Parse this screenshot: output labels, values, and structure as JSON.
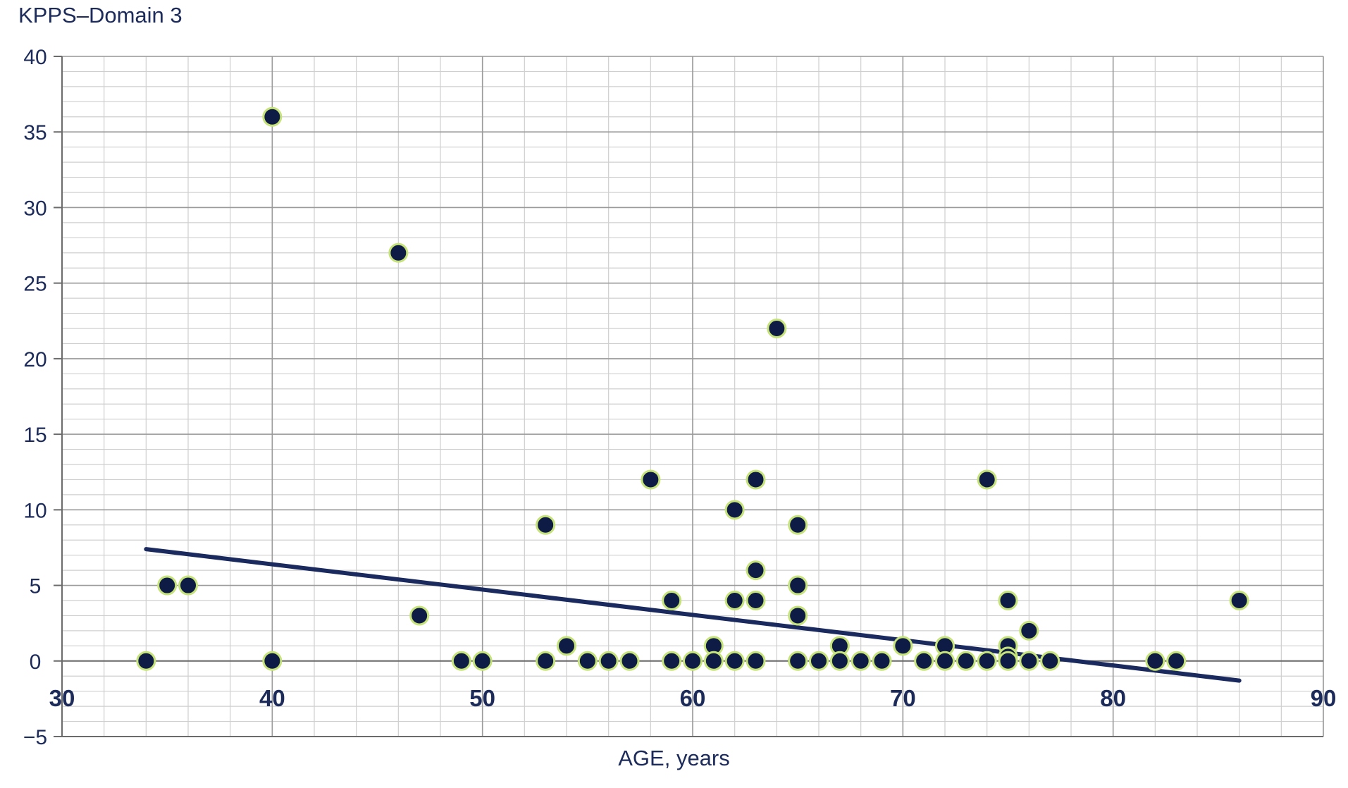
{
  "chart_data": {
    "type": "scatter",
    "title": "",
    "ylabel": "KPPS–Domain 3",
    "xlabel": "AGE, years",
    "xlim": [
      30,
      90
    ],
    "ylim": [
      -5,
      40
    ],
    "x_ticks": [
      30,
      40,
      50,
      60,
      70,
      80,
      90
    ],
    "y_ticks": [
      -5,
      0,
      5,
      10,
      15,
      20,
      25,
      30,
      35,
      40
    ],
    "x_tick_labels": [
      "30",
      "40",
      "50",
      "60",
      "70",
      "80",
      "90"
    ],
    "y_tick_labels": [
      "−5",
      "0",
      "5",
      "10",
      "15",
      "20",
      "25",
      "30",
      "35",
      "40"
    ],
    "grid": true,
    "legend": "none",
    "marker_color": "#0d1b45",
    "marker_edge_color": "#c6e37a",
    "line_color": "#1a2a5e",
    "points": [
      {
        "x": 34,
        "y": 0
      },
      {
        "x": 35,
        "y": 5
      },
      {
        "x": 36,
        "y": 5
      },
      {
        "x": 40,
        "y": 36
      },
      {
        "x": 40,
        "y": 0
      },
      {
        "x": 46,
        "y": 27
      },
      {
        "x": 47,
        "y": 3
      },
      {
        "x": 49,
        "y": 0
      },
      {
        "x": 50,
        "y": 0
      },
      {
        "x": 53,
        "y": 9
      },
      {
        "x": 53,
        "y": 0
      },
      {
        "x": 54,
        "y": 1
      },
      {
        "x": 55,
        "y": 0
      },
      {
        "x": 56,
        "y": 0
      },
      {
        "x": 57,
        "y": 0
      },
      {
        "x": 58,
        "y": 12
      },
      {
        "x": 59,
        "y": 4
      },
      {
        "x": 59,
        "y": 0
      },
      {
        "x": 60,
        "y": 0
      },
      {
        "x": 61,
        "y": 1
      },
      {
        "x": 61,
        "y": 0
      },
      {
        "x": 62,
        "y": 10
      },
      {
        "x": 62,
        "y": 4
      },
      {
        "x": 62,
        "y": 0
      },
      {
        "x": 63,
        "y": 12
      },
      {
        "x": 63,
        "y": 6
      },
      {
        "x": 63,
        "y": 4
      },
      {
        "x": 63,
        "y": 0
      },
      {
        "x": 64,
        "y": 22
      },
      {
        "x": 65,
        "y": 9
      },
      {
        "x": 65,
        "y": 5
      },
      {
        "x": 65,
        "y": 3
      },
      {
        "x": 65,
        "y": 0
      },
      {
        "x": 66,
        "y": 0
      },
      {
        "x": 67,
        "y": 1
      },
      {
        "x": 67,
        "y": 0
      },
      {
        "x": 68,
        "y": 0
      },
      {
        "x": 69,
        "y": 0
      },
      {
        "x": 70,
        "y": 1
      },
      {
        "x": 71,
        "y": 0
      },
      {
        "x": 72,
        "y": 1
      },
      {
        "x": 72,
        "y": 0
      },
      {
        "x": 73,
        "y": 0
      },
      {
        "x": 74,
        "y": 12
      },
      {
        "x": 74,
        "y": 0
      },
      {
        "x": 75,
        "y": 4
      },
      {
        "x": 75,
        "y": 1
      },
      {
        "x": 75,
        "y": 0.3
      },
      {
        "x": 75,
        "y": 0
      },
      {
        "x": 76,
        "y": 2
      },
      {
        "x": 76,
        "y": 0
      },
      {
        "x": 77,
        "y": 0
      },
      {
        "x": 82,
        "y": 0
      },
      {
        "x": 83,
        "y": 0
      },
      {
        "x": 86,
        "y": 4
      }
    ],
    "trend_line": {
      "x": [
        34,
        86
      ],
      "y": [
        7.4,
        -1.3
      ]
    }
  }
}
